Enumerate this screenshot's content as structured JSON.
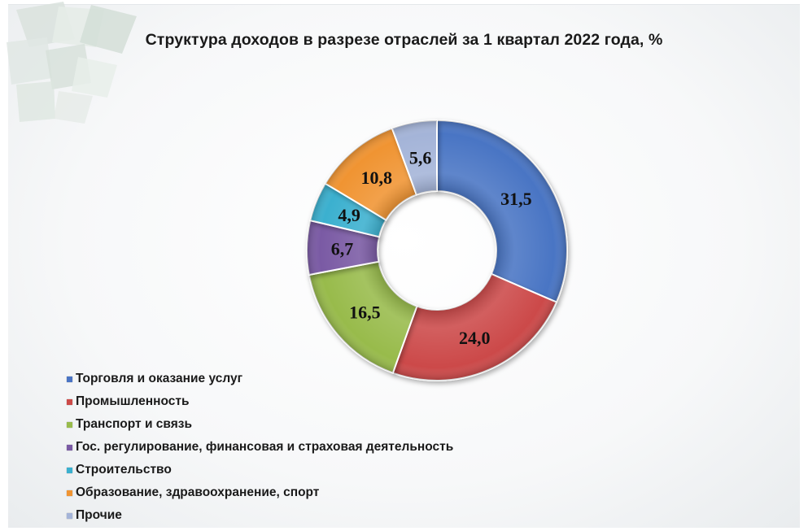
{
  "chart_data": {
    "type": "donut",
    "title": "Структура доходов в разрезе отраслей за 1 квартал 2022 года, %",
    "legend_position": "bottom-left",
    "slices": [
      {
        "name": "Торговля и оказание услуг",
        "value": 31.5,
        "label": "31,5",
        "color": "#4a74c4"
      },
      {
        "name": "Промышленность",
        "value": 24.0,
        "label": "24,0",
        "color": "#cc4a48"
      },
      {
        "name": "Транспорт и связь",
        "value": 16.5,
        "label": "16,5",
        "color": "#98bb4c"
      },
      {
        "name": "Гос. регулирование, финансовая и страховая деятельность",
        "value": 6.7,
        "label": "6,7",
        "color": "#7a5aa4"
      },
      {
        "name": "Строительство",
        "value": 4.9,
        "label": "4,9",
        "color": "#3ab0cf"
      },
      {
        "name": "Образование, здравоохранение, спорт",
        "value": 10.8,
        "label": "10,8",
        "color": "#f09432"
      },
      {
        "name": "Прочие",
        "value": 5.6,
        "label": "5,6",
        "color": "#a4b4d8"
      }
    ]
  }
}
